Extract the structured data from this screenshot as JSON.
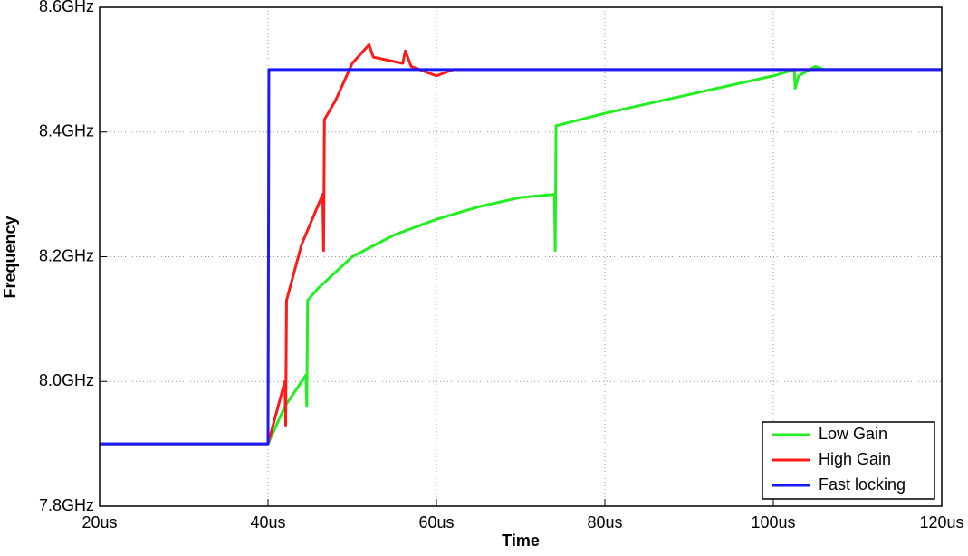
{
  "chart_data": {
    "type": "line",
    "xlabel": "Time",
    "ylabel": "Frequency",
    "xlim": [
      20,
      120
    ],
    "xticks": [
      {
        "value": 20,
        "label": "20us"
      },
      {
        "value": 40,
        "label": "40us"
      },
      {
        "value": 60,
        "label": "60us"
      },
      {
        "value": 80,
        "label": "80us"
      },
      {
        "value": 100,
        "label": "100us"
      },
      {
        "value": 120,
        "label": "120us"
      }
    ],
    "ylim": [
      7.8,
      8.6
    ],
    "yticks": [
      {
        "value": 7.8,
        "label": "7.8GHz"
      },
      {
        "value": 8.0,
        "label": "8.0GHz"
      },
      {
        "value": 8.2,
        "label": "8.2GHz"
      },
      {
        "value": 8.4,
        "label": "8.4GHz"
      },
      {
        "value": 8.6,
        "label": "8.6GHz"
      }
    ],
    "grid": true,
    "legend": "lower right",
    "series": [
      {
        "name": "Low Gain",
        "color": "#22ee22",
        "x": [
          20,
          40,
          42,
          44.5,
          44.6,
          44.7,
          46,
          50,
          55,
          60,
          65,
          70,
          74,
          74.1,
          74.2,
          80,
          90,
          100,
          102.5,
          102.6,
          103,
          105,
          106,
          120
        ],
        "values": [
          7.9,
          7.9,
          7.96,
          8.01,
          7.96,
          8.13,
          8.15,
          8.2,
          8.235,
          8.26,
          8.28,
          8.295,
          8.3,
          8.21,
          8.41,
          8.43,
          8.46,
          8.49,
          8.5,
          8.47,
          8.49,
          8.505,
          8.5,
          8.5
        ]
      },
      {
        "name": "High Gain",
        "color": "#ff1a1a",
        "x": [
          20,
          40,
          42,
          42.1,
          42.2,
          44,
          46.5,
          46.6,
          46.7,
          48,
          50,
          52,
          52.5,
          56,
          56.3,
          57,
          60,
          62,
          120
        ],
        "values": [
          7.9,
          7.9,
          8.0,
          7.93,
          8.13,
          8.22,
          8.3,
          8.21,
          8.42,
          8.45,
          8.51,
          8.54,
          8.52,
          8.51,
          8.53,
          8.505,
          8.49,
          8.5,
          8.5
        ]
      },
      {
        "name": "Fast locking",
        "color": "#1a1aff",
        "x": [
          20,
          40,
          40.1,
          120
        ],
        "values": [
          7.9,
          7.9,
          8.5,
          8.5
        ]
      }
    ]
  }
}
